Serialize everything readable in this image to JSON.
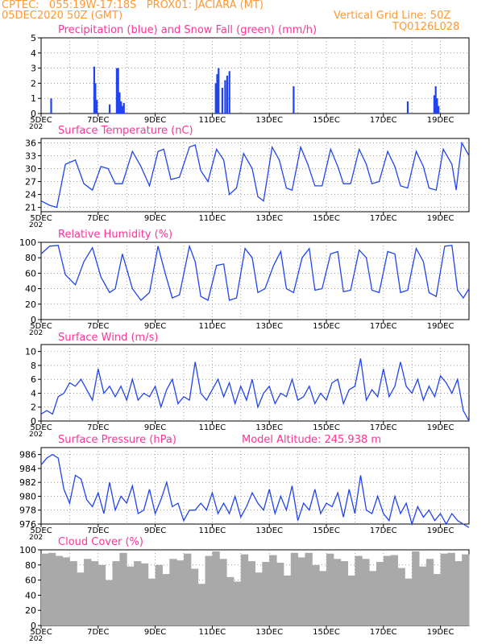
{
  "header": {
    "line1_left": "CPTEC:   055:19W-17:18S   PROX01: JACIARA (MT)",
    "line2_left": "05DEC2020 50Z (GMT)",
    "line2_right": "Vertical Grid Line: 50Z",
    "code": "TQ0126L028"
  },
  "colors": {
    "header": "#ff9933",
    "title": "#ff3399",
    "line": "#2244ee",
    "snow": "#22aa22",
    "cloud": "#a9a9a9",
    "grid": "#666666"
  },
  "x_axis": {
    "labels": [
      "5DEC",
      "7DEC",
      "9DEC",
      "11DEC",
      "13DEC",
      "15DEC",
      "17DEC",
      "19DEC"
    ],
    "label_days": [
      0,
      2,
      4,
      6,
      8,
      10,
      12,
      14
    ],
    "span_days": 15,
    "stub": "202"
  },
  "chart_data": [
    {
      "id": "precip",
      "type": "bar",
      "title": "Precipitation (blue) and Snow Fall (green) (mm/h)",
      "ylim": [
        0,
        5
      ],
      "yticks": [
        "0",
        "1",
        "2",
        "3",
        "4",
        "5"
      ],
      "series": [
        {
          "name": "Precipitation",
          "color": "blue",
          "x": [
            0.35,
            1.86,
            1.9,
            1.95,
            2.4,
            2.65,
            2.7,
            2.75,
            2.8,
            2.85,
            2.9,
            6.12,
            6.17,
            6.22,
            6.35,
            6.45,
            6.52,
            6.6,
            8.85,
            12.85,
            13.78,
            13.83,
            13.88,
            13.93
          ],
          "values": [
            1.0,
            3.1,
            2.0,
            0.9,
            0.6,
            3.0,
            3.0,
            1.4,
            0.8,
            0.5,
            0.7,
            2.0,
            2.6,
            3.0,
            1.7,
            2.2,
            2.5,
            2.8,
            1.8,
            0.8,
            1.2,
            1.8,
            1.0,
            0.5
          ]
        },
        {
          "name": "Snow Fall",
          "color": "green",
          "x": [],
          "values": []
        }
      ]
    },
    {
      "id": "temp",
      "type": "line",
      "title": "Surface Temperature (nC)",
      "ylim": [
        20,
        37
      ],
      "yticks": [
        "21",
        "24",
        "27",
        "30",
        "33",
        "36"
      ],
      "x": [
        0.0,
        0.3,
        0.55,
        0.85,
        1.2,
        1.5,
        1.8,
        2.1,
        2.35,
        2.6,
        2.85,
        3.2,
        3.5,
        3.8,
        4.1,
        4.3,
        4.55,
        4.85,
        5.2,
        5.4,
        5.6,
        5.85,
        6.15,
        6.4,
        6.6,
        6.85,
        7.1,
        7.4,
        7.6,
        7.8,
        8.1,
        8.35,
        8.6,
        8.8,
        9.1,
        9.35,
        9.6,
        9.85,
        10.15,
        10.4,
        10.6,
        10.85,
        11.15,
        11.4,
        11.6,
        11.85,
        12.15,
        12.4,
        12.6,
        12.85,
        13.15,
        13.4,
        13.6,
        13.85,
        14.1,
        14.4,
        14.55,
        14.75,
        15.0
      ],
      "values": [
        22.5,
        21.5,
        21.0,
        31.0,
        32.0,
        26.5,
        25.0,
        30.5,
        30.0,
        26.5,
        26.5,
        34.0,
        30.5,
        26.0,
        34.0,
        34.5,
        27.5,
        28.0,
        35.0,
        35.5,
        29.5,
        27.0,
        34.5,
        32.0,
        24.0,
        25.5,
        33.5,
        30.0,
        23.5,
        22.5,
        35.0,
        32.0,
        25.5,
        25.0,
        35.0,
        31.0,
        26.0,
        26.0,
        34.5,
        30.5,
        26.5,
        26.5,
        34.5,
        31.0,
        26.5,
        27.0,
        34.0,
        30.5,
        26.0,
        25.5,
        34.0,
        30.5,
        25.5,
        25.0,
        34.5,
        31.0,
        25.0,
        36.0,
        33.0
      ]
    },
    {
      "id": "rh",
      "type": "line",
      "title": "Relative Humidity (%)",
      "ylim": [
        0,
        100
      ],
      "yticks": [
        "0",
        "20",
        "40",
        "60",
        "80",
        "100"
      ],
      "x": [
        0.0,
        0.3,
        0.6,
        0.85,
        1.2,
        1.5,
        1.8,
        2.1,
        2.4,
        2.6,
        2.85,
        3.2,
        3.5,
        3.8,
        4.1,
        4.35,
        4.6,
        4.85,
        5.2,
        5.4,
        5.6,
        5.85,
        6.15,
        6.4,
        6.6,
        6.85,
        7.15,
        7.4,
        7.6,
        7.85,
        8.15,
        8.4,
        8.6,
        8.85,
        9.15,
        9.4,
        9.6,
        9.85,
        10.15,
        10.4,
        10.6,
        10.85,
        11.15,
        11.4,
        11.6,
        11.85,
        12.15,
        12.4,
        12.6,
        12.85,
        13.15,
        13.4,
        13.6,
        13.85,
        14.15,
        14.4,
        14.6,
        14.8,
        15.0
      ],
      "values": [
        85.0,
        95.0,
        96.0,
        58.0,
        45.0,
        75.0,
        93.0,
        55.0,
        35.0,
        40.0,
        85.0,
        40.0,
        25.0,
        35.0,
        95.0,
        60.0,
        28.0,
        32.0,
        95.0,
        75.0,
        30.0,
        25.0,
        70.0,
        72.0,
        25.0,
        28.0,
        92.0,
        80.0,
        35.0,
        40.0,
        70.0,
        88.0,
        40.0,
        35.0,
        80.0,
        92.0,
        38.0,
        40.0,
        85.0,
        88.0,
        36.0,
        38.0,
        90.0,
        80.0,
        38.0,
        35.0,
        88.0,
        85.0,
        35.0,
        38.0,
        92.0,
        75.0,
        35.0,
        30.0,
        95.0,
        96.0,
        38.0,
        28.0,
        40.0
      ]
    },
    {
      "id": "wind",
      "type": "line",
      "title": "Surface Wind (m/s)",
      "ylim": [
        0,
        11
      ],
      "yticks": [
        "0",
        "2",
        "4",
        "6",
        "8",
        "10"
      ],
      "x": [
        0.0,
        0.2,
        0.4,
        0.6,
        0.8,
        1.0,
        1.2,
        1.4,
        1.6,
        1.8,
        2.0,
        2.2,
        2.4,
        2.6,
        2.8,
        3.0,
        3.2,
        3.4,
        3.6,
        3.8,
        4.0,
        4.2,
        4.4,
        4.6,
        4.8,
        5.0,
        5.2,
        5.4,
        5.6,
        5.8,
        6.0,
        6.2,
        6.4,
        6.6,
        6.8,
        7.0,
        7.2,
        7.4,
        7.6,
        7.8,
        8.0,
        8.2,
        8.4,
        8.6,
        8.8,
        9.0,
        9.2,
        9.4,
        9.6,
        9.8,
        10.0,
        10.2,
        10.4,
        10.6,
        10.8,
        11.0,
        11.2,
        11.4,
        11.6,
        11.8,
        12.0,
        12.2,
        12.4,
        12.6,
        12.8,
        13.0,
        13.2,
        13.4,
        13.6,
        13.8,
        14.0,
        14.2,
        14.4,
        14.6,
        14.8,
        15.0
      ],
      "values": [
        1.0,
        1.5,
        1.0,
        3.5,
        4.0,
        5.5,
        5.0,
        6.0,
        4.5,
        3.0,
        7.5,
        4.0,
        5.0,
        3.5,
        5.0,
        3.0,
        6.0,
        3.0,
        4.0,
        3.5,
        5.0,
        2.0,
        4.5,
        6.0,
        2.5,
        3.5,
        3.0,
        8.5,
        4.0,
        3.0,
        4.5,
        6.0,
        3.5,
        5.5,
        2.5,
        5.0,
        3.0,
        6.0,
        2.0,
        4.0,
        5.0,
        2.5,
        4.0,
        3.5,
        6.0,
        3.0,
        3.5,
        5.0,
        2.5,
        4.0,
        3.0,
        5.5,
        6.0,
        2.5,
        4.5,
        5.0,
        9.0,
        3.0,
        4.5,
        3.5,
        7.5,
        3.5,
        5.0,
        8.5,
        5.0,
        4.0,
        6.0,
        3.0,
        5.0,
        3.5,
        6.5,
        5.5,
        4.0,
        6.0,
        1.5,
        0.0
      ]
    },
    {
      "id": "pressure",
      "type": "line",
      "title": "Surface Pressure (hPa)",
      "extra_label": "Model Altitude: 245.938 m",
      "ylim": [
        976,
        987
      ],
      "yticks": [
        "976",
        "978",
        "980",
        "982",
        "984",
        "986"
      ],
      "x": [
        0.0,
        0.2,
        0.4,
        0.6,
        0.8,
        1.0,
        1.2,
        1.4,
        1.6,
        1.8,
        2.0,
        2.2,
        2.4,
        2.6,
        2.8,
        3.0,
        3.2,
        3.4,
        3.6,
        3.8,
        4.0,
        4.2,
        4.4,
        4.6,
        4.8,
        5.0,
        5.2,
        5.4,
        5.6,
        5.8,
        6.0,
        6.2,
        6.4,
        6.6,
        6.8,
        7.0,
        7.2,
        7.4,
        7.6,
        7.8,
        8.0,
        8.2,
        8.4,
        8.6,
        8.8,
        9.0,
        9.2,
        9.4,
        9.6,
        9.8,
        10.0,
        10.2,
        10.4,
        10.6,
        10.8,
        11.0,
        11.2,
        11.4,
        11.6,
        11.8,
        12.0,
        12.2,
        12.4,
        12.6,
        12.8,
        13.0,
        13.2,
        13.4,
        13.6,
        13.8,
        14.0,
        14.2,
        14.4,
        14.6,
        14.8,
        15.0
      ],
      "values": [
        984.5,
        985.5,
        986.0,
        985.5,
        981.0,
        979.0,
        983.0,
        982.5,
        979.5,
        978.5,
        980.5,
        977.5,
        982.0,
        978.0,
        980.0,
        979.0,
        981.5,
        977.5,
        978.0,
        981.0,
        977.5,
        979.5,
        982.0,
        978.5,
        979.0,
        976.5,
        978.0,
        978.0,
        979.0,
        978.0,
        980.5,
        977.5,
        979.0,
        977.5,
        980.0,
        977.0,
        978.5,
        980.5,
        979.0,
        978.0,
        981.0,
        977.5,
        980.0,
        978.0,
        981.5,
        976.5,
        979.0,
        978.0,
        981.0,
        977.5,
        979.0,
        978.5,
        980.5,
        977.0,
        981.0,
        977.5,
        983.0,
        978.0,
        977.5,
        980.0,
        977.5,
        976.5,
        980.0,
        977.5,
        979.0,
        976.0,
        978.5,
        977.0,
        978.0,
        976.5,
        977.5,
        976.0,
        977.5,
        976.5,
        976.0,
        975.5
      ]
    },
    {
      "id": "cloud",
      "type": "bar",
      "title": "Cloud Cover (%)",
      "ylim": [
        0,
        100
      ],
      "yticks": [
        "0",
        "20",
        "40",
        "60",
        "80",
        "100"
      ],
      "x": [
        0.0,
        0.25,
        0.5,
        0.75,
        1.0,
        1.25,
        1.5,
        1.75,
        2.0,
        2.25,
        2.5,
        2.75,
        3.0,
        3.25,
        3.5,
        3.75,
        4.0,
        4.25,
        4.5,
        4.75,
        5.0,
        5.25,
        5.5,
        5.75,
        6.0,
        6.25,
        6.5,
        6.75,
        7.0,
        7.25,
        7.5,
        7.75,
        8.0,
        8.25,
        8.5,
        8.75,
        9.0,
        9.25,
        9.5,
        9.75,
        10.0,
        10.25,
        10.5,
        10.75,
        11.0,
        11.25,
        11.5,
        11.75,
        12.0,
        12.25,
        12.5,
        12.75,
        13.0,
        13.25,
        13.5,
        13.75,
        14.0,
        14.25,
        14.5,
        14.75
      ],
      "values": [
        95,
        96,
        92,
        90,
        85,
        70,
        88,
        85,
        80,
        60,
        85,
        96,
        78,
        85,
        82,
        62,
        80,
        68,
        88,
        86,
        95,
        75,
        55,
        92,
        98,
        88,
        64,
        58,
        94,
        85,
        70,
        84,
        93,
        83,
        66,
        96,
        90,
        96,
        80,
        72,
        95,
        88,
        85,
        66,
        92,
        88,
        72,
        84,
        92,
        93,
        76,
        62,
        98,
        78,
        88,
        68,
        95,
        96,
        85,
        94
      ]
    }
  ]
}
